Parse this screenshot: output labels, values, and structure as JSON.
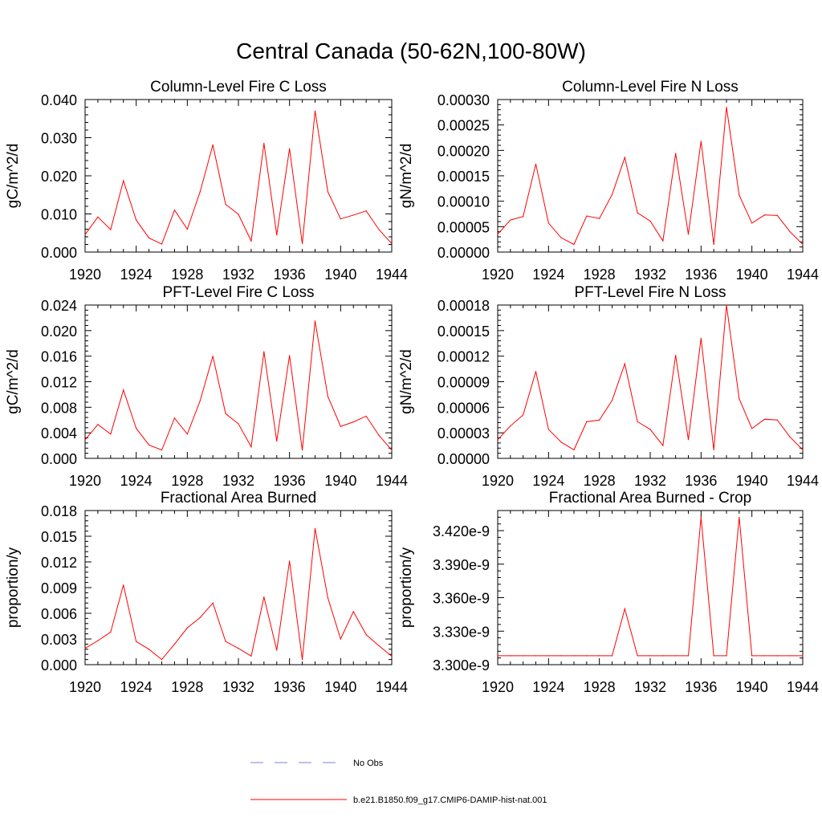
{
  "title": "Central Canada (50-62N,100-80W)",
  "colors": {
    "model": "#ff0000",
    "obs": "#7f7fd9",
    "axis": "#000000"
  },
  "legend": [
    {
      "label": "No Obs",
      "style": "dashed",
      "color": "#7f7fd9"
    },
    {
      "label": "b.e21.B1850.f09_g17.CMIP6-DAMIP-hist-nat.001",
      "style": "solid",
      "color": "#ff0000"
    }
  ],
  "chart_data": [
    {
      "type": "line",
      "title": "Column-Level Fire C Loss",
      "ylabel": "gC/m^2/d",
      "xlim": [
        1920,
        1944
      ],
      "ylim": [
        0,
        0.04
      ],
      "xticks": [
        "1920",
        "1924",
        "1928",
        "1932",
        "1936",
        "1940",
        "1944"
      ],
      "yticks": [
        "0.000",
        "0.010",
        "0.020",
        "0.030",
        "0.040"
      ],
      "x": [
        1920,
        1921,
        1922,
        1923,
        1924,
        1925,
        1926,
        1927,
        1928,
        1929,
        1930,
        1931,
        1932,
        1933,
        1934,
        1935,
        1936,
        1937,
        1938,
        1939,
        1940,
        1941,
        1942,
        1943,
        1944
      ],
      "series": [
        {
          "values": [
            0.0046,
            0.0092,
            0.0059,
            0.0187,
            0.0084,
            0.0037,
            0.0021,
            0.011,
            0.006,
            0.0158,
            0.0281,
            0.0125,
            0.0099,
            0.0029,
            0.0285,
            0.0045,
            0.0271,
            0.0022,
            0.037,
            0.0158,
            0.0087,
            0.0097,
            0.0108,
            0.0059,
            0.0022
          ]
        }
      ]
    },
    {
      "type": "line",
      "title": "Column-Level Fire N Loss",
      "ylabel": "gN/m^2/d",
      "xlim": [
        1920,
        1944
      ],
      "ylim": [
        0,
        0.0003
      ],
      "xticks": [
        "1920",
        "1924",
        "1928",
        "1932",
        "1936",
        "1940",
        "1944"
      ],
      "yticks": [
        "0.00000",
        "0.00005",
        "0.00010",
        "0.00015",
        "0.00020",
        "0.00025",
        "0.00030"
      ],
      "x": [
        1920,
        1921,
        1922,
        1923,
        1924,
        1925,
        1926,
        1927,
        1928,
        1929,
        1930,
        1931,
        1932,
        1933,
        1934,
        1935,
        1936,
        1937,
        1938,
        1939,
        1940,
        1941,
        1942,
        1943,
        1944
      ],
      "series": [
        {
          "values": [
            3.5e-05,
            6.3e-05,
            7e-05,
            0.000173,
            5.7e-05,
            2.8e-05,
            1.5e-05,
            7.1e-05,
            6.6e-05,
            0.000113,
            0.000186,
            7.7e-05,
            6.1e-05,
            2.2e-05,
            0.000194,
            3.5e-05,
            0.000218,
            1.5e-05,
            0.000285,
            0.000112,
            5.7e-05,
            7.3e-05,
            7.2e-05,
            4e-05,
            1.5e-05
          ]
        }
      ]
    },
    {
      "type": "line",
      "title": "PFT-Level Fire C Loss",
      "ylabel": "gC/m^2/d",
      "xlim": [
        1920,
        1944
      ],
      "ylim": [
        0,
        0.024
      ],
      "xticks": [
        "1920",
        "1924",
        "1928",
        "1932",
        "1936",
        "1940",
        "1944"
      ],
      "yticks": [
        "0.000",
        "0.004",
        "0.008",
        "0.012",
        "0.016",
        "0.020",
        "0.024"
      ],
      "x": [
        1920,
        1921,
        1922,
        1923,
        1924,
        1925,
        1926,
        1927,
        1928,
        1929,
        1930,
        1931,
        1932,
        1933,
        1934,
        1935,
        1936,
        1937,
        1938,
        1939,
        1940,
        1941,
        1942,
        1943,
        1944
      ],
      "series": [
        {
          "values": [
            0.0029,
            0.0053,
            0.0038,
            0.0107,
            0.0047,
            0.0021,
            0.0013,
            0.0063,
            0.0038,
            0.009,
            0.016,
            0.007,
            0.0054,
            0.0018,
            0.0167,
            0.0027,
            0.0161,
            0.0013,
            0.0215,
            0.0097,
            0.005,
            0.0057,
            0.0066,
            0.0036,
            0.0013
          ]
        }
      ]
    },
    {
      "type": "line",
      "title": "PFT-Level Fire N Loss",
      "ylabel": "gN/m^2/d",
      "xlim": [
        1920,
        1944
      ],
      "ylim": [
        0,
        0.00018
      ],
      "xticks": [
        "1920",
        "1924",
        "1928",
        "1932",
        "1936",
        "1940",
        "1944"
      ],
      "yticks": [
        "0.00000",
        "0.00003",
        "0.00006",
        "0.00009",
        "0.00012",
        "0.00015",
        "0.00018"
      ],
      "x": [
        1920,
        1921,
        1922,
        1923,
        1924,
        1925,
        1926,
        1927,
        1928,
        1929,
        1930,
        1931,
        1932,
        1933,
        1934,
        1935,
        1936,
        1937,
        1938,
        1939,
        1940,
        1941,
        1942,
        1943,
        1944
      ],
      "series": [
        {
          "values": [
            2.2e-05,
            3.8e-05,
            5.1e-05,
            0.000102,
            3.4e-05,
            1.9e-05,
            1e-05,
            4.3e-05,
            4.5e-05,
            6.8e-05,
            0.000111,
            4.3e-05,
            3.4e-05,
            1.5e-05,
            0.000121,
            2.2e-05,
            0.000141,
            1e-05,
            0.00018,
            7e-05,
            3.5e-05,
            4.6e-05,
            4.5e-05,
            2.5e-05,
            1e-05
          ]
        }
      ]
    },
    {
      "type": "line",
      "title": "Fractional Area Burned",
      "ylabel": "proportion/y",
      "xlim": [
        1920,
        1944
      ],
      "ylim": [
        0,
        0.018
      ],
      "xticks": [
        "1920",
        "1924",
        "1928",
        "1932",
        "1936",
        "1940",
        "1944"
      ],
      "yticks": [
        "0.000",
        "0.003",
        "0.006",
        "0.009",
        "0.012",
        "0.015",
        "0.018"
      ],
      "x": [
        1920,
        1921,
        1922,
        1923,
        1924,
        1925,
        1926,
        1927,
        1928,
        1929,
        1930,
        1931,
        1932,
        1933,
        1934,
        1935,
        1936,
        1937,
        1938,
        1939,
        1940,
        1941,
        1942,
        1943,
        1944
      ],
      "series": [
        {
          "values": [
            0.0019,
            0.0028,
            0.0038,
            0.0093,
            0.0027,
            0.0018,
            0.0006,
            0.0024,
            0.0043,
            0.0055,
            0.0072,
            0.0027,
            0.0019,
            0.001,
            0.0079,
            0.0017,
            0.0121,
            0.0006,
            0.0159,
            0.0078,
            0.003,
            0.0062,
            0.0035,
            0.0022,
            0.001
          ]
        }
      ]
    },
    {
      "type": "line",
      "title": "Fractional Area Burned - Crop",
      "ylabel": "proportion/y",
      "xlim": [
        1920,
        1944
      ],
      "ylim": [
        3.3e-09,
        3.438e-09
      ],
      "xticks": [
        "1920",
        "1924",
        "1928",
        "1932",
        "1936",
        "1940",
        "1944"
      ],
      "yticks": [
        "3.300e-9",
        "3.330e-9",
        "3.360e-9",
        "3.390e-9",
        "3.420e-9"
      ],
      "ytick_values": [
        3.3e-09,
        3.33e-09,
        3.36e-09,
        3.39e-09,
        3.42e-09
      ],
      "x": [
        1920,
        1921,
        1922,
        1923,
        1924,
        1925,
        1926,
        1927,
        1928,
        1929,
        1930,
        1931,
        1932,
        1933,
        1934,
        1935,
        1936,
        1937,
        1938,
        1939,
        1940,
        1941,
        1942,
        1943,
        1944
      ],
      "series": [
        {
          "values": [
            3.308e-09,
            3.308e-09,
            3.308e-09,
            3.308e-09,
            3.308e-09,
            3.308e-09,
            3.308e-09,
            3.308e-09,
            3.308e-09,
            3.308e-09,
            3.35e-09,
            3.308e-09,
            3.308e-09,
            3.308e-09,
            3.308e-09,
            3.308e-09,
            3.432e-09,
            3.308e-09,
            3.308e-09,
            3.432e-09,
            3.308e-09,
            3.308e-09,
            3.308e-09,
            3.308e-09,
            3.308e-09
          ]
        }
      ]
    }
  ]
}
